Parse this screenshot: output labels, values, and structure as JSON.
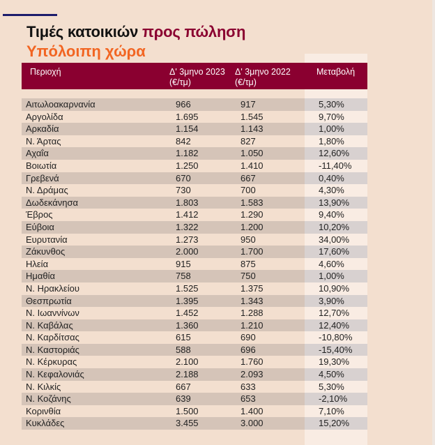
{
  "title": {
    "part1": "Τιμές κατοικιών",
    "part2": "προς πώληση",
    "subtitle": "Υπόλοιπη χώρα"
  },
  "colors": {
    "accent": "#8a0030",
    "subtitle": "#f26522",
    "background": "#f3dfcf"
  },
  "table": {
    "headers": {
      "region": "Περιοχή",
      "q2023_line1": "Δ' 3μηνο 2023",
      "q2023_line2": "(€/τμ)",
      "q2022_line1": "Δ' 3μηνο 2022",
      "q2022_line2": "(€/τμ)",
      "change": "Μεταβολή"
    },
    "rows": [
      [
        "Αιτωλοακαρνανία",
        "966",
        "917",
        "5,30%"
      ],
      [
        "Αργολίδα",
        "1.695",
        "1.545",
        "9,70%"
      ],
      [
        "Αρκαδία",
        "1.154",
        "1.143",
        "1,00%"
      ],
      [
        "Ν. Άρτας",
        "842",
        "827",
        "1,80%"
      ],
      [
        "Αχαΐα",
        "1.182",
        "1.050",
        "12,60%"
      ],
      [
        "Βοιωτία",
        "1.250",
        "1.410",
        "-11,40%"
      ],
      [
        "Γρεβενά",
        "670",
        "667",
        "0,40%"
      ],
      [
        "Ν. Δράμας",
        "730",
        "700",
        "4,30%"
      ],
      [
        "Δωδεκάνησα",
        "1.803",
        "1.583",
        "13,90%"
      ],
      [
        "Έβρος",
        "1.412",
        "1.290",
        "9,40%"
      ],
      [
        "Εύβοια",
        "1.322",
        "1.200",
        "10,20%"
      ],
      [
        "Ευρυτανία",
        "1.273",
        "950",
        "34,00%"
      ],
      [
        "Ζάκυνθος",
        "2.000",
        "1.700",
        "17,60%"
      ],
      [
        "Ηλεία",
        "915",
        "875",
        "4,60%"
      ],
      [
        "Ημαθία",
        "758",
        "750",
        "1,00%"
      ],
      [
        "Ν. Ηρακλείου",
        "1.525",
        "1.375",
        "10,90%"
      ],
      [
        "Θεσπρωτία",
        "1.395",
        "1.343",
        "3,90%"
      ],
      [
        "Ν. Ιωαννίνων",
        "1.452",
        "1.288",
        "12,70%"
      ],
      [
        "Ν. Καβάλας",
        "1.360",
        "1.210",
        "12,40%"
      ],
      [
        "Ν. Καρδίτσας",
        "615",
        "690",
        "-10,80%"
      ],
      [
        "Ν. Καστοριάς",
        "588",
        "696",
        "-15,40%"
      ],
      [
        "Ν. Κέρκυρας",
        "2.100",
        "1.760",
        "19,30%"
      ],
      [
        "Ν. Κεφαλονιάς",
        "2.188",
        "2.093",
        "4,50%"
      ],
      [
        "Ν. Κιλκίς",
        "667",
        "633",
        "5,30%"
      ],
      [
        "Ν. Κοζάνης",
        "639",
        "653",
        "-2,10%"
      ],
      [
        "Κορινθία",
        "1.500",
        "1.400",
        "7,10%"
      ],
      [
        "Κυκλάδες",
        "3.455",
        "3.000",
        "15,20%"
      ]
    ]
  }
}
